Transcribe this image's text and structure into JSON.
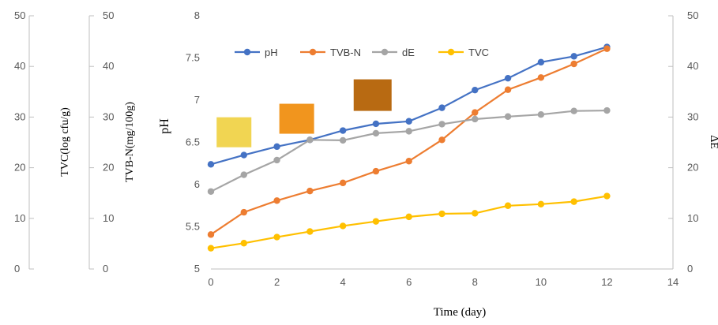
{
  "chart_data": {
    "type": "line",
    "xlabel": "Time (day)",
    "x_ticks": [
      "0",
      "2",
      "4",
      "6",
      "8",
      "10",
      "12",
      "14"
    ],
    "xlim": [
      0,
      14
    ],
    "x": [
      0,
      1,
      2,
      3,
      4,
      5,
      6,
      7,
      8,
      9,
      10,
      11,
      12
    ],
    "axes": {
      "ph": {
        "label": "pH",
        "ylim": [
          5,
          8
        ],
        "ticks": [
          "5",
          "5.5",
          "6",
          "6.5",
          "7",
          "7.5",
          "8"
        ]
      },
      "de": {
        "label": "ΔE",
        "ylim": [
          0,
          50
        ],
        "ticks": [
          "0",
          "10",
          "20",
          "30",
          "40",
          "50"
        ]
      },
      "tvbn": {
        "label": "TVB-N(mg/100g)",
        "ylim": [
          0,
          50
        ],
        "ticks": [
          "0",
          "10",
          "20",
          "30",
          "40",
          "50"
        ]
      },
      "tvc": {
        "label": "TVC(log cfu/g)",
        "ylim": [
          0,
          50
        ],
        "ticks": [
          "0",
          "10",
          "20",
          "30",
          "40",
          "50"
        ]
      }
    },
    "legend_position": "top",
    "series": [
      {
        "name": "pH",
        "axis": "ph",
        "color": "#4472c4",
        "values": [
          6.24,
          6.35,
          6.45,
          6.53,
          6.64,
          6.72,
          6.75,
          6.91,
          7.12,
          7.26,
          7.45,
          7.52,
          7.63
        ]
      },
      {
        "name": "TVB-N",
        "axis": "tvbn",
        "color": "#ed7d31",
        "values": [
          6.8,
          11.2,
          13.5,
          15.4,
          17.0,
          19.3,
          21.3,
          25.5,
          30.9,
          35.4,
          37.8,
          40.5,
          43.5
        ]
      },
      {
        "name": "dE",
        "axis": "de",
        "color": "#a5a5a5",
        "values": [
          15.3,
          18.6,
          21.5,
          25.5,
          25.4,
          26.8,
          27.2,
          28.6,
          29.6,
          30.1,
          30.5,
          31.2,
          31.3
        ]
      },
      {
        "name": "TVC",
        "axis": "tvc",
        "color": "#ffc000",
        "values": [
          4.1,
          5.1,
          6.3,
          7.4,
          8.5,
          9.4,
          10.3,
          10.9,
          11.0,
          12.5,
          12.8,
          13.3,
          14.4
        ]
      }
    ],
    "swatches": [
      {
        "name": "day-0-color-swatch",
        "x": 0.7,
        "color": "#f1d552"
      },
      {
        "name": "mid-color-swatch",
        "x": 2.6,
        "color": "#f1951e"
      },
      {
        "name": "late-color-swatch",
        "x": 4.9,
        "color": "#b86a12"
      }
    ]
  }
}
